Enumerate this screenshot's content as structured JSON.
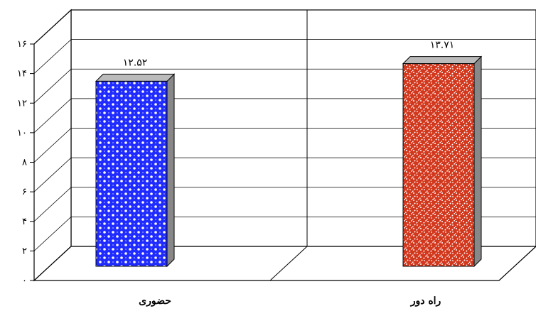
{
  "chart_data": {
    "type": "bar",
    "categories": [
      "حضوری",
      "راه دور"
    ],
    "values": [
      12.52,
      13.71
    ],
    "value_labels": [
      "۱۲.۵۲",
      "۱۳.۷۱"
    ],
    "ylim": [
      0,
      16
    ],
    "yticks": [
      0,
      2,
      4,
      6,
      8,
      10,
      12,
      14,
      16
    ],
    "ytick_labels": [
      "۰",
      "۲",
      "۴",
      "۶",
      "۸",
      "۱۰",
      "۱۲",
      "۱۴",
      "۱۶"
    ],
    "title": "",
    "xlabel": "",
    "ylabel": "",
    "grid": true,
    "three_d": true,
    "legend": "none",
    "series_colors": [
      "#1f2bff",
      "#d2381d"
    ],
    "series_patterns": [
      "dotted-diamond",
      "diagonal-dash"
    ],
    "side_color": "#888888"
  }
}
